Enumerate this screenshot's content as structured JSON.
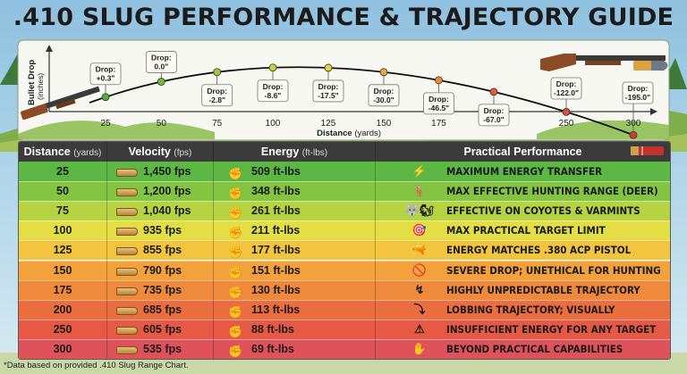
{
  "title": ".410 SLUG PERFORMANCE & TRAJECTORY GUIDE",
  "chart_data": {
    "type": "line",
    "xlabel": "Distance",
    "xlabel_unit": "(yards)",
    "ylabel": "Bullet Drop",
    "ylabel_unit": "(inches)",
    "x": [
      25,
      50,
      75,
      100,
      125,
      150,
      175,
      200,
      250,
      300
    ],
    "y": [
      0.3,
      0.0,
      -2.8,
      -8.6,
      -17.5,
      -30.0,
      -46.5,
      -67.0,
      -122.0,
      -195.0
    ],
    "drop_labels": [
      "+0.3\"",
      "0.0\"",
      "-2.8\"",
      "-8.6\"",
      "-17.5\"",
      "-30.0\"",
      "-46.5\"",
      "-67.0\"",
      "-122.0\"",
      "-195.0\""
    ],
    "label_prefix": "Drop:",
    "point_colors": [
      "#4caf3a",
      "#6dbb38",
      "#9ccb35",
      "#c9d634",
      "#e9d23a",
      "#f0a535",
      "#ef8a34",
      "#e5583a",
      "#e04a3f",
      "#d83838"
    ]
  },
  "table": {
    "headers": [
      {
        "label": "Distance",
        "unit": "(yards)"
      },
      {
        "label": "Velocity",
        "unit": "(fps)"
      },
      {
        "label": "Energy",
        "unit": "(ft-lbs)"
      },
      {
        "label": "Practical Performance",
        "unit": ""
      }
    ],
    "rows": [
      {
        "distance": "25",
        "velocity": "1,450 fps",
        "energy": "509 ft-lbs",
        "performance": "MAXIMUM ENERGY TRANSFER",
        "icon": "lightning-icon",
        "color": "#5cb843"
      },
      {
        "distance": "50",
        "velocity": "1,200 fps",
        "energy": "348 ft-lbs",
        "performance": "MAX EFFECTIVE HUNTING RANGE (DEER)",
        "icon": "deer-icon",
        "color": "#84c443"
      },
      {
        "distance": "75",
        "velocity": "1,040 fps",
        "energy": "261 ft-lbs",
        "performance": "EFFECTIVE ON COYOTES & VARMINTS",
        "icon": "coyote-icon",
        "color": "#b6d342"
      },
      {
        "distance": "100",
        "velocity": "935 fps",
        "energy": "211 ft-lbs",
        "performance": "MAX PRACTICAL TARGET LIMIT",
        "icon": "target-icon",
        "color": "#e3de44"
      },
      {
        "distance": "125",
        "velocity": "855 fps",
        "energy": "177 ft-lbs",
        "performance": "ENERGY MATCHES .380 ACP PISTOL",
        "icon": "pistol-icon",
        "color": "#f3c53e"
      },
      {
        "distance": "150",
        "velocity": "790 fps",
        "energy": "151 ft-lbs",
        "performance": "SEVERE DROP; UNETHICAL FOR HUNTING",
        "icon": "no-hunting-icon",
        "color": "#f2a13b"
      },
      {
        "distance": "175",
        "velocity": "735 fps",
        "energy": "130 ft-lbs",
        "performance": "HIGHLY UNPREDICTABLE TRAJECTORY",
        "icon": "erratic-trajectory-icon",
        "color": "#ef8a3c"
      },
      {
        "distance": "200",
        "velocity": "685 fps",
        "energy": "113 ft-lbs",
        "performance": "LOBBING TRAJECTORY; VISUALLY PLUNGING",
        "icon": "plunging-arrow-icon",
        "color": "#eb6e40"
      },
      {
        "distance": "250",
        "velocity": "605 fps",
        "energy": "88 ft-lbs",
        "performance": "INSUFFICIENT ENERGY FOR ANY TARGET",
        "icon": "warning-icon",
        "color": "#e65a45"
      },
      {
        "distance": "300",
        "velocity": "535 fps",
        "energy": "69 ft-lbs",
        "performance": "BEYOND PRACTICAL CAPABILITIES",
        "icon": "hand-stop-icon",
        "color": "#e0525a"
      }
    ]
  },
  "footnote": "*Data based on provided .410 Slug Range Chart."
}
